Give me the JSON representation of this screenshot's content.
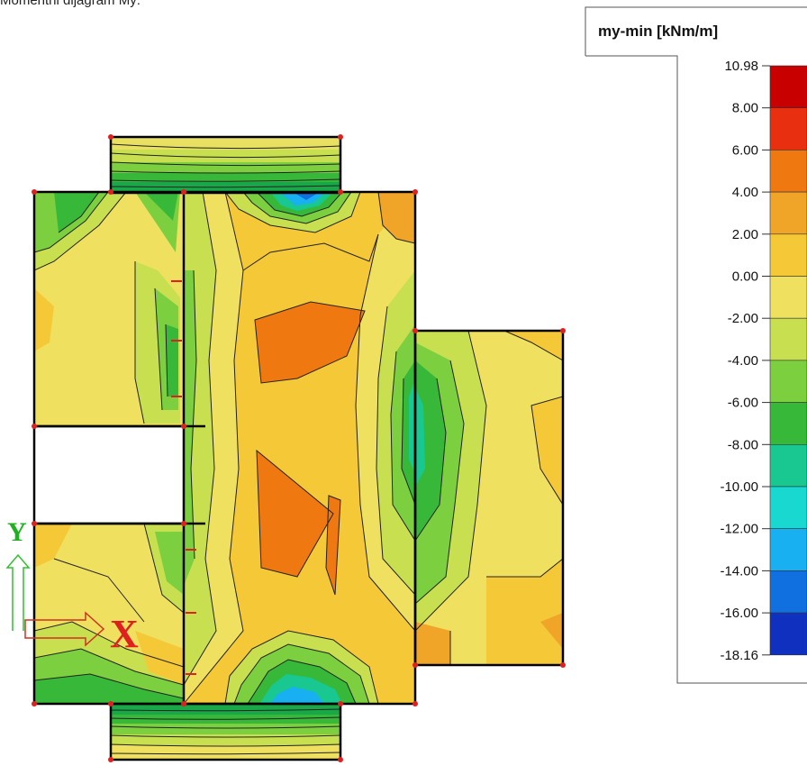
{
  "caption": "Momenthi dijagram My:",
  "legend": {
    "title": "my-min [kNm/m]",
    "ticks": [
      "10.98",
      "8.00",
      "6.00",
      "4.00",
      "2.00",
      "0.00",
      "-2.00",
      "-4.00",
      "-6.00",
      "-8.00",
      "-10.00",
      "-12.00",
      "-14.00",
      "-16.00",
      "-18.16"
    ],
    "colors": [
      "#c80000",
      "#e83010",
      "#f07810",
      "#f0a428",
      "#f5c838",
      "#f0e060",
      "#c8e050",
      "#7cd040",
      "#38b838",
      "#18c890",
      "#18d8d0",
      "#18b0f0",
      "#1070e0",
      "#1030c0",
      "#2010a0"
    ]
  },
  "axes": {
    "x_label": "X",
    "y_label": "Y"
  }
}
